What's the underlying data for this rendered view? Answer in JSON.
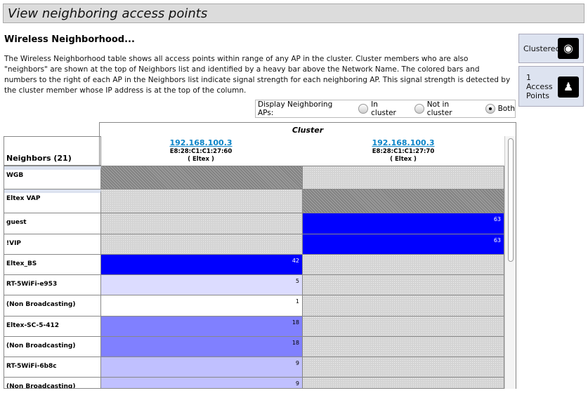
{
  "title": "View neighboring access points",
  "heading": "Wireless Neighborhood...",
  "description": "The Wireless Neighborhood table shows all access points within range of any AP in the cluster. Cluster members who are also \"neighbors\" are shown at the top of Neighbors list and identified by a heavy bar above the Network Name. The colored bars and numbers to the right of each AP in the Neighbors list indicate signal strength for each neighboring AP. This signal strength is detected by the cluster member whose IP address is at the top of the column.",
  "side": {
    "clustered": "Clustered",
    "ap_count": "1",
    "ap_label1": "Access",
    "ap_label2": "Points"
  },
  "filter": {
    "label": "Display Neighboring APs:",
    "options": [
      "In cluster",
      "Not in cluster",
      "Both"
    ],
    "selected": "Both"
  },
  "cluster": {
    "title": "Cluster",
    "aps": [
      {
        "ip": "192.168.100.3",
        "mac": "E8:28:C1:C1:27:60",
        "name": "( Eltex )"
      },
      {
        "ip": "192.168.100.3",
        "mac": "E8:28:C1:C1:27:70",
        "name": "( Eltex )"
      }
    ]
  },
  "neighbors_header": "Neighbors (21)",
  "rows": [
    {
      "name": "WGB",
      "member": true,
      "c": [
        [
          "hatch",
          ""
        ],
        [
          "gray",
          ""
        ]
      ]
    },
    {
      "name": "Eltex VAP",
      "member": true,
      "c": [
        [
          "gray",
          ""
        ],
        [
          "hatch",
          ""
        ]
      ]
    },
    {
      "name": "guest",
      "c": [
        [
          "gray",
          ""
        ],
        [
          "b4",
          "63"
        ]
      ]
    },
    {
      "name": "!VIP",
      "c": [
        [
          "gray",
          ""
        ],
        [
          "b4",
          "63"
        ]
      ]
    },
    {
      "name": "Eltex_BS",
      "c": [
        [
          "b4",
          "42"
        ],
        [
          "gray",
          ""
        ]
      ]
    },
    {
      "name": "RT-5WiFi-e953",
      "c": [
        [
          "b1",
          "5"
        ],
        [
          "gray",
          ""
        ]
      ]
    },
    {
      "name": "(Non Broadcasting)",
      "c": [
        [
          "b0",
          "1"
        ],
        [
          "gray",
          ""
        ]
      ]
    },
    {
      "name": "Eltex-SC-5-412",
      "c": [
        [
          "b3",
          "18"
        ],
        [
          "gray",
          ""
        ]
      ]
    },
    {
      "name": "(Non Broadcasting)",
      "c": [
        [
          "b3",
          "18"
        ],
        [
          "gray",
          ""
        ]
      ]
    },
    {
      "name": "RT-5WiFi-6b8c",
      "c": [
        [
          "b2",
          "9"
        ],
        [
          "gray",
          ""
        ]
      ]
    },
    {
      "name": "(Non Broadcasting)",
      "c": [
        [
          "b2",
          "9"
        ],
        [
          "gray",
          ""
        ]
      ]
    }
  ]
}
